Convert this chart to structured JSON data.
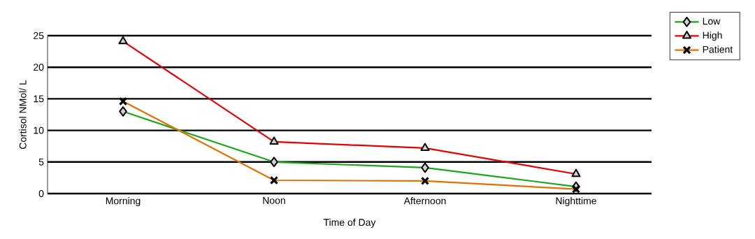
{
  "chart_data": {
    "type": "line",
    "xlabel": "Time of Day",
    "ylabel": "Cortisol NMol/ L",
    "categories": [
      "Morning",
      "Noon",
      "Afternoon",
      "Nighttime"
    ],
    "series": [
      {
        "name": "Low",
        "color": "#1aa51a",
        "marker": "diamond",
        "values": [
          13.0,
          5.0,
          4.1,
          1.1
        ]
      },
      {
        "name": "High",
        "color": "#e00000",
        "marker": "triangle",
        "values": [
          24.1,
          8.2,
          7.2,
          3.1
        ]
      },
      {
        "name": "Patient",
        "color": "#e07000",
        "marker": "cross",
        "values": [
          14.6,
          2.1,
          2.0,
          0.7
        ]
      }
    ],
    "ylim": [
      0,
      25
    ],
    "yticks": [
      0,
      5,
      10,
      15,
      20,
      25
    ],
    "grid": "y",
    "legend": "top right",
    "line_style": "solid"
  }
}
